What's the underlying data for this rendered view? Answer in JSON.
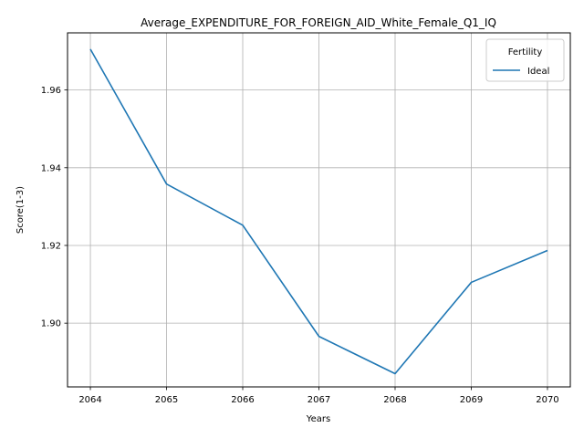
{
  "chart_data": {
    "type": "line",
    "title": "Average_EXPENDITURE_FOR_FOREIGN_AID_White_Female_Q1_IQ",
    "xlabel": "Years",
    "ylabel": "Score(1-3)",
    "x": [
      2064,
      2065,
      2066,
      2067,
      2068,
      2069,
      2070
    ],
    "x_tick_labels": [
      "2064",
      "2065",
      "2066",
      "2067",
      "2068",
      "2069",
      "2070"
    ],
    "y_ticks": [
      1.9,
      1.92,
      1.94,
      1.96
    ],
    "y_tick_labels": [
      "1.90",
      "1.92",
      "1.94",
      "1.96"
    ],
    "xlim": [
      2063.7,
      2070.3
    ],
    "ylim": [
      1.8836,
      1.9747
    ],
    "grid": true,
    "legend": {
      "title": "Fertility",
      "placement": "top-right"
    },
    "series": [
      {
        "name": "Ideal",
        "color": "#1f77b4",
        "values": [
          1.9705,
          1.9358,
          1.9252,
          1.8966,
          1.887,
          1.9105,
          1.9187
        ]
      }
    ]
  }
}
